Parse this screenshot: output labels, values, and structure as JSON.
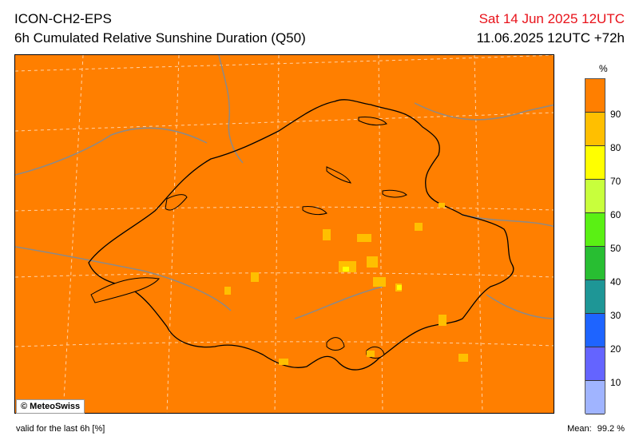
{
  "header": {
    "model": "ICON-CH2-EPS",
    "product": "6h Cumulated Relative Sunshine Duration (Q50)",
    "valid_time": "Sat 14 Jun 2025 12UTC",
    "run": "11.06.2025 12UTC +72h"
  },
  "legend": {
    "unit": "%",
    "ticks": [
      "90",
      "80",
      "70",
      "60",
      "50",
      "40",
      "30",
      "20",
      "10"
    ],
    "colors": [
      "#ff7f00",
      "#ffbf00",
      "#ffff00",
      "#c8ff3c",
      "#5af014",
      "#28be32",
      "#1e9696",
      "#1e64ff",
      "#6464ff",
      "#a0b4ff"
    ]
  },
  "map": {
    "background_color": "#ff7f00",
    "credit": "© MeteoSwiss"
  },
  "footer": {
    "valid_label": "valid for the last 6h [%]",
    "mean_label": "Mean:",
    "mean_value": "99.2 %"
  }
}
